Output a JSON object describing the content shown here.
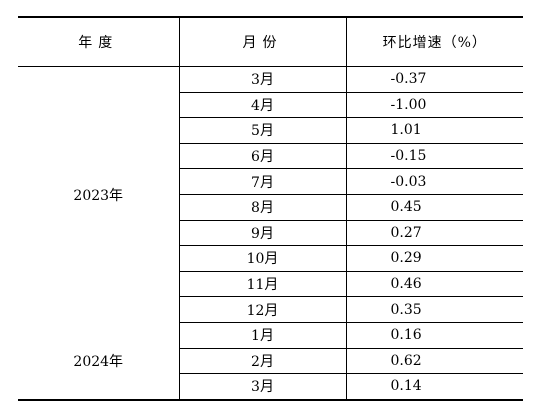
{
  "table": {
    "headers": {
      "year": "年度",
      "month": "月份",
      "value": "环比增速（%）"
    },
    "groups": [
      {
        "year": "2023年",
        "rows": [
          {
            "month": "3月",
            "value": "-0.37"
          },
          {
            "month": "4月",
            "value": "-1.00"
          },
          {
            "month": "5月",
            "value": "1.01"
          },
          {
            "month": "6月",
            "value": "-0.15"
          },
          {
            "month": "7月",
            "value": "-0.03"
          },
          {
            "month": "8月",
            "value": "0.45"
          },
          {
            "month": "9月",
            "value": "0.27"
          },
          {
            "month": "10月",
            "value": "0.29"
          },
          {
            "month": "11月",
            "value": "0.46"
          },
          {
            "month": "12月",
            "value": "0.35"
          }
        ]
      },
      {
        "year": "2024年",
        "rows": [
          {
            "month": "1月",
            "value": "0.16"
          },
          {
            "month": "2月",
            "value": "0.62"
          },
          {
            "month": "3月",
            "value": "0.14"
          }
        ]
      }
    ]
  }
}
